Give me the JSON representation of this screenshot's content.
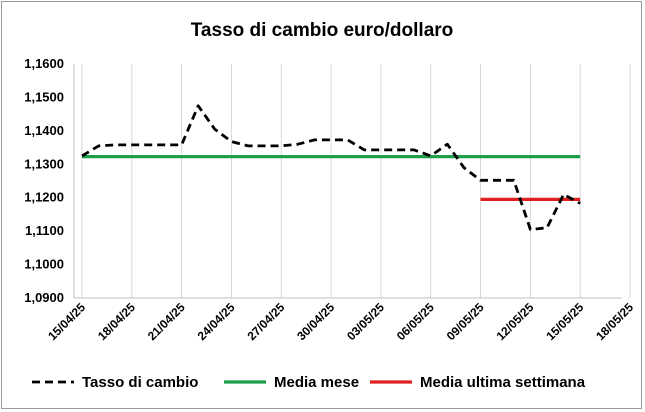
{
  "chart_data": {
    "type": "line",
    "title": "Tasso di cambio euro/dollaro",
    "xlabel": "",
    "ylabel": "",
    "ylim": [
      1.09,
      1.16
    ],
    "y_ticks": [
      "1,0900",
      "1,1000",
      "1,1100",
      "1,1200",
      "1,1300",
      "1,1400",
      "1,1500",
      "1,1600"
    ],
    "x_ticks": [
      "15/04/25",
      "18/04/25",
      "21/04/25",
      "24/04/25",
      "27/04/25",
      "30/04/25",
      "03/05/25",
      "06/05/25",
      "09/05/25",
      "12/05/25",
      "15/05/25",
      "18/05/25"
    ],
    "grid": "vertical",
    "legend_position": "bottom",
    "series": [
      {
        "name": "Tasso di cambio",
        "color": "#000000",
        "style": "dashed",
        "points": [
          [
            "15/04/25",
            1.1325
          ],
          [
            "16/04/25",
            1.1355
          ],
          [
            "17/04/25",
            1.1358
          ],
          [
            "18/04/25",
            1.1358
          ],
          [
            "19/04/25",
            1.1358
          ],
          [
            "20/04/25",
            1.1358
          ],
          [
            "21/04/25",
            1.1358
          ],
          [
            "22/04/25",
            1.1475
          ],
          [
            "23/04/25",
            1.1405
          ],
          [
            "24/04/25",
            1.1368
          ],
          [
            "25/04/25",
            1.1355
          ],
          [
            "26/04/25",
            1.1355
          ],
          [
            "27/04/25",
            1.1355
          ],
          [
            "28/04/25",
            1.136
          ],
          [
            "29/04/25",
            1.1373
          ],
          [
            "30/04/25",
            1.1373
          ],
          [
            "01/05/25",
            1.1373
          ],
          [
            "02/05/25",
            1.1343
          ],
          [
            "03/05/25",
            1.1343
          ],
          [
            "04/05/25",
            1.1343
          ],
          [
            "05/05/25",
            1.1343
          ],
          [
            "06/05/25",
            1.1325
          ],
          [
            "07/05/25",
            1.136
          ],
          [
            "08/05/25",
            1.129
          ],
          [
            "09/05/25",
            1.1252
          ],
          [
            "10/05/25",
            1.1252
          ],
          [
            "11/05/25",
            1.1252
          ],
          [
            "12/05/25",
            1.1105
          ],
          [
            "13/05/25",
            1.111
          ],
          [
            "14/05/25",
            1.121
          ],
          [
            "15/05/25",
            1.1183
          ]
        ]
      },
      {
        "name": "Media mese",
        "color": "#1e9e4a",
        "style": "solid",
        "points": [
          [
            "15/04/25",
            1.1323
          ],
          [
            "15/05/25",
            1.1323
          ]
        ]
      },
      {
        "name": "Media ultima settimana",
        "color": "#e02020",
        "style": "solid",
        "points": [
          [
            "09/05/25",
            1.1195
          ],
          [
            "15/05/25",
            1.1195
          ]
        ]
      }
    ]
  }
}
